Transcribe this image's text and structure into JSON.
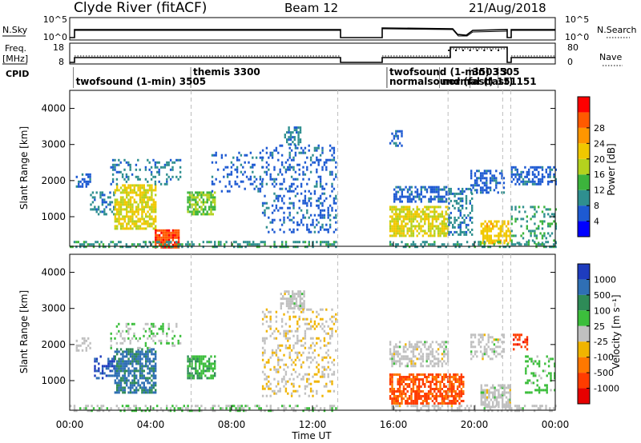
{
  "header": {
    "radar": "Clyde River (fitACF)",
    "beam": "Beam 12",
    "date": "21/Aug/2018"
  },
  "strips": {
    "nsky_label": "N.Sky",
    "nsky_ticks": [
      "10^5",
      "10^0"
    ],
    "nsearch_label": "N.Search",
    "nsearch_ticks": [
      "10^5",
      "10^0"
    ],
    "freq_label_1": "Freq.",
    "freq_label_2": "[MHz]",
    "freq_ticks": [
      "18",
      "8"
    ],
    "nave_label": "Nave",
    "nave_ticks": [
      "80",
      "0"
    ],
    "cpid_label": "CPID",
    "cpid_entries": [
      {
        "t": 0.3,
        "row": 1,
        "text": "twofsound (1-min) 3505"
      },
      {
        "t": 6.1,
        "row": 0,
        "text": "themis 3300"
      },
      {
        "t": 15.8,
        "row": 0,
        "text": "twofsound (1-min) 3505"
      },
      {
        "t": 15.8,
        "row": 1,
        "text": "normalsound (fast) 151"
      },
      {
        "t": 18.4,
        "row": 1,
        "text": "normal (fast) 151"
      },
      {
        "t": 19.9,
        "row": 0,
        "text": "3503"
      },
      {
        "t": 21.3,
        "row": 0,
        "text": "3"
      }
    ],
    "data_gap_hours": [
      13.25,
      15.75
    ]
  },
  "axes": {
    "xlabel": "Time UT",
    "ylabel": "Slant Range [km]",
    "time_ticks": [
      "00:00",
      "04:00",
      "08:00",
      "12:00",
      "16:00",
      "20:00",
      "00:00"
    ],
    "range_ticks": [
      "1000",
      "2000",
      "3000",
      "4000"
    ],
    "xlim_hours": [
      0,
      24
    ],
    "ylim_km": [
      180,
      4500
    ],
    "mode_change_hours": [
      6.0,
      13.25,
      18.7,
      21.4,
      21.8
    ]
  },
  "colorbars": {
    "power": {
      "label": "Power [dB]",
      "ticks": [
        "4",
        "8",
        "12",
        "16",
        "20",
        "24",
        "28"
      ],
      "colors": [
        "#0000ff",
        "#1e5ad2",
        "#2f8f8f",
        "#3cb43c",
        "#b4d21e",
        "#f0c800",
        "#ff9600",
        "#ff5a00",
        "#ff0000"
      ]
    },
    "velocity": {
      "label": "Velocity [m s⁻¹]",
      "ticks": [
        "1000",
        "500",
        "100",
        "25",
        "-25",
        "-100",
        "-500",
        "-1000"
      ],
      "colors": [
        "#1e3cbe",
        "#2f6fb4",
        "#2e8b57",
        "#3cbe3c",
        "#c0c0c0",
        "#f0b400",
        "#ff7800",
        "#ff3c00",
        "#e60000"
      ]
    }
  },
  "chart_data": [
    {
      "type": "heatmap",
      "name": "Power",
      "x_unit": "hours UT",
      "y_unit": "km",
      "xlim": [
        0,
        24
      ],
      "ylim": [
        180,
        4500
      ],
      "value_unit": "dB",
      "clim": [
        0,
        32
      ],
      "scatter_regions": [
        {
          "t": [
            0.3,
            1.0
          ],
          "r": [
            1850,
            2200
          ],
          "v": 6,
          "density": 0.5
        },
        {
          "t": [
            1.0,
            2.2
          ],
          "r": [
            1050,
            1700
          ],
          "v": 8,
          "density": 0.4
        },
        {
          "t": [
            2.2,
            4.2
          ],
          "r": [
            700,
            1900
          ],
          "v": 18,
          "density": 0.7
        },
        {
          "t": [
            5.8,
            7.2
          ],
          "r": [
            1100,
            1700
          ],
          "v": 14,
          "density": 0.7
        },
        {
          "t": [
            2.0,
            5.5
          ],
          "r": [
            1900,
            2600
          ],
          "v": 8,
          "density": 0.25
        },
        {
          "t": [
            7.0,
            9.5
          ],
          "r": [
            1700,
            2800
          ],
          "v": 6,
          "density": 0.2
        },
        {
          "t": [
            10.6,
            11.4
          ],
          "r": [
            3000,
            3500
          ],
          "v": 8,
          "density": 0.6
        },
        {
          "t": [
            9.5,
            13.2
          ],
          "r": [
            600,
            3000
          ],
          "v": 6,
          "density": 0.25
        },
        {
          "t": [
            4.2,
            5.4
          ],
          "r": [
            180,
            650
          ],
          "v": 28,
          "density": 0.8
        },
        {
          "t": [
            0.0,
            13.2
          ],
          "r": [
            180,
            330
          ],
          "v": 10,
          "density": 0.45
        },
        {
          "t": [
            15.8,
            16.4
          ],
          "r": [
            3000,
            3400
          ],
          "v": 6,
          "density": 0.4
        },
        {
          "t": [
            16.0,
            18.7
          ],
          "r": [
            1450,
            1850
          ],
          "v": 6,
          "density": 0.6
        },
        {
          "t": [
            15.8,
            18.7
          ],
          "r": [
            450,
            1300
          ],
          "v": 18,
          "density": 0.7
        },
        {
          "t": [
            18.7,
            19.9
          ],
          "r": [
            500,
            1800
          ],
          "v": 8,
          "density": 0.4
        },
        {
          "t": [
            19.8,
            21.5
          ],
          "r": [
            1700,
            2300
          ],
          "v": 6,
          "density": 0.4
        },
        {
          "t": [
            20.3,
            21.8
          ],
          "r": [
            250,
            900
          ],
          "v": 20,
          "density": 0.6
        },
        {
          "t": [
            21.8,
            24.0
          ],
          "r": [
            1900,
            2400
          ],
          "v": 6,
          "density": 0.5
        },
        {
          "t": [
            21.8,
            24.0
          ],
          "r": [
            250,
            1300
          ],
          "v": 10,
          "density": 0.3
        },
        {
          "t": [
            15.8,
            24.0
          ],
          "r": [
            180,
            330
          ],
          "v": 10,
          "density": 0.4
        }
      ]
    },
    {
      "type": "heatmap",
      "name": "Velocity",
      "x_unit": "hours UT",
      "y_unit": "km",
      "xlim": [
        0,
        24
      ],
      "ylim": [
        180,
        4500
      ],
      "value_unit": "m/s",
      "clim": [
        -1000,
        1000
      ],
      "scatter_regions": [
        {
          "t": [
            0.3,
            1.0
          ],
          "r": [
            1850,
            2200
          ],
          "v": 0,
          "density": 0.5
        },
        {
          "t": [
            1.2,
            2.2
          ],
          "r": [
            1050,
            1700
          ],
          "v": 800,
          "density": 0.4
        },
        {
          "t": [
            2.2,
            4.2
          ],
          "r": [
            700,
            1900
          ],
          "v": 600,
          "density": 0.7
        },
        {
          "t": [
            5.8,
            7.2
          ],
          "r": [
            1100,
            1700
          ],
          "v": 300,
          "density": 0.7
        },
        {
          "t": [
            2.0,
            5.5
          ],
          "r": [
            1900,
            2600
          ],
          "v": 100,
          "density": 0.25
        },
        {
          "t": [
            10.4,
            11.6
          ],
          "r": [
            3000,
            3500
          ],
          "v": 0,
          "density": 0.6
        },
        {
          "t": [
            9.5,
            13.2
          ],
          "r": [
            600,
            3000
          ],
          "v": -80,
          "density": 0.25
        },
        {
          "t": [
            0.0,
            13.2
          ],
          "r": [
            180,
            330
          ],
          "v": 100,
          "density": 0.4
        },
        {
          "t": [
            15.8,
            18.7
          ],
          "r": [
            1400,
            2100
          ],
          "v": 0,
          "density": 0.55
        },
        {
          "t": [
            15.8,
            19.5
          ],
          "r": [
            400,
            1200
          ],
          "v": -600,
          "density": 0.7
        },
        {
          "t": [
            19.8,
            21.5
          ],
          "r": [
            1600,
            2300
          ],
          "v": 0,
          "density": 0.4
        },
        {
          "t": [
            20.3,
            21.8
          ],
          "r": [
            250,
            900
          ],
          "v": 0,
          "density": 0.6
        },
        {
          "t": [
            21.9,
            22.6
          ],
          "r": [
            1900,
            2300
          ],
          "v": -700,
          "density": 0.5
        },
        {
          "t": [
            22.5,
            24.0
          ],
          "r": [
            700,
            1700
          ],
          "v": 200,
          "density": 0.3
        },
        {
          "t": [
            15.8,
            24.0
          ],
          "r": [
            180,
            330
          ],
          "v": 0,
          "density": 0.4
        }
      ]
    }
  ]
}
